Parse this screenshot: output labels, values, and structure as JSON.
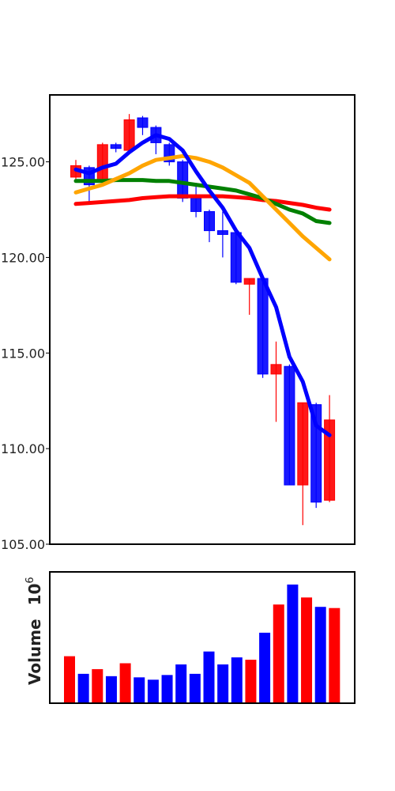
{
  "colors": {
    "up": "#ff0000",
    "down": "#0000ff",
    "ma_short": "#0000ff",
    "ma_mid": "#ffa500",
    "ma_long": "#008000",
    "ma_longest": "#ff0000"
  },
  "chart_data": [
    {
      "type": "candlestick",
      "ylim": [
        105,
        128.5
      ],
      "yticks": [
        "105.00",
        "110.00",
        "115.00",
        "120.00",
        "125.00"
      ],
      "candles": [
        {
          "open": 124.2,
          "high": 125.1,
          "low": 124.1,
          "close": 124.8,
          "dir": "up"
        },
        {
          "open": 124.7,
          "high": 124.8,
          "low": 122.8,
          "close": 123.8,
          "dir": "down"
        },
        {
          "open": 124.0,
          "high": 126.0,
          "low": 123.9,
          "close": 125.9,
          "dir": "up"
        },
        {
          "open": 125.9,
          "high": 126.0,
          "low": 125.5,
          "close": 125.7,
          "dir": "down"
        },
        {
          "open": 125.6,
          "high": 127.5,
          "low": 125.5,
          "close": 127.2,
          "dir": "up"
        },
        {
          "open": 127.3,
          "high": 127.4,
          "low": 126.4,
          "close": 126.8,
          "dir": "down"
        },
        {
          "open": 126.8,
          "high": 126.9,
          "low": 125.4,
          "close": 126.0,
          "dir": "down"
        },
        {
          "open": 125.9,
          "high": 126.0,
          "low": 124.8,
          "close": 125.0,
          "dir": "down"
        },
        {
          "open": 125.0,
          "high": 125.1,
          "low": 122.9,
          "close": 123.1,
          "dir": "down"
        },
        {
          "open": 123.1,
          "high": 123.9,
          "low": 122.1,
          "close": 122.4,
          "dir": "down"
        },
        {
          "open": 122.4,
          "high": 122.5,
          "low": 120.8,
          "close": 121.4,
          "dir": "down"
        },
        {
          "open": 121.4,
          "high": 122.4,
          "low": 120.0,
          "close": 121.2,
          "dir": "down"
        },
        {
          "open": 121.3,
          "high": 121.4,
          "low": 118.6,
          "close": 118.7,
          "dir": "down"
        },
        {
          "open": 118.6,
          "high": 118.9,
          "low": 117.0,
          "close": 118.9,
          "dir": "up"
        },
        {
          "open": 118.9,
          "high": 119.0,
          "low": 113.7,
          "close": 113.9,
          "dir": "down"
        },
        {
          "open": 113.9,
          "high": 115.6,
          "low": 111.4,
          "close": 114.4,
          "dir": "up"
        },
        {
          "open": 114.3,
          "high": 114.4,
          "low": 108.1,
          "close": 108.1,
          "dir": "down"
        },
        {
          "open": 108.1,
          "high": 112.4,
          "low": 106.0,
          "close": 112.4,
          "dir": "up"
        },
        {
          "open": 112.3,
          "high": 112.4,
          "low": 106.9,
          "close": 107.2,
          "dir": "down"
        },
        {
          "open": 107.3,
          "high": 112.8,
          "low": 107.2,
          "close": 111.5,
          "dir": "up"
        }
      ],
      "series": [
        {
          "color": "#0000ff",
          "values": [
            124.6,
            124.4,
            124.7,
            124.9,
            125.5,
            126.0,
            126.4,
            126.2,
            125.6,
            124.5,
            123.5,
            122.6,
            121.4,
            120.5,
            118.9,
            117.4,
            114.8,
            113.5,
            111.2,
            110.7
          ]
        },
        {
          "color": "#ffa500",
          "values": [
            123.4,
            123.6,
            123.8,
            124.1,
            124.4,
            124.8,
            125.1,
            125.2,
            125.3,
            125.2,
            125.0,
            124.7,
            124.3,
            123.9,
            123.2,
            122.5,
            121.8,
            121.1,
            120.5,
            119.9
          ]
        },
        {
          "color": "#008000",
          "values": [
            124.0,
            124.0,
            124.0,
            124.05,
            124.05,
            124.05,
            124.0,
            124.0,
            123.9,
            123.8,
            123.7,
            123.6,
            123.5,
            123.3,
            123.1,
            122.8,
            122.5,
            122.3,
            121.9,
            121.8
          ]
        },
        {
          "color": "#ff0000",
          "values": [
            122.8,
            122.85,
            122.9,
            122.95,
            123.0,
            123.1,
            123.15,
            123.2,
            123.2,
            123.2,
            123.2,
            123.2,
            123.15,
            123.1,
            123.0,
            122.95,
            122.85,
            122.75,
            122.6,
            122.5
          ]
        }
      ]
    },
    {
      "type": "bar",
      "ylabel": "Volume",
      "ylabel_exponent": "6",
      "ylim": [
        0,
        100
      ],
      "values": [
        40,
        25,
        29,
        23,
        34,
        22,
        20,
        24,
        33,
        25,
        44,
        33,
        39,
        37,
        60,
        84,
        101,
        90,
        82,
        81
      ],
      "dirs": [
        "up",
        "down",
        "up",
        "down",
        "up",
        "down",
        "down",
        "down",
        "down",
        "down",
        "down",
        "down",
        "down",
        "up",
        "down",
        "up",
        "down",
        "up",
        "down",
        "up"
      ]
    }
  ]
}
